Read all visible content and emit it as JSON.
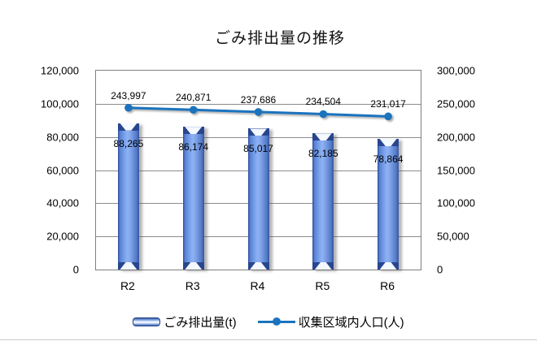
{
  "title": "ごみ排出量の推移",
  "chart_data": {
    "type": "combo-bar-line",
    "title": "ごみ排出量の推移",
    "categories": [
      "R2",
      "R3",
      "R4",
      "R5",
      "R6"
    ],
    "series": [
      {
        "name": "ごみ排出量(t)",
        "type": "bar",
        "axis": "left",
        "values": [
          88265,
          86174,
          85017,
          82185,
          78864
        ],
        "labels": [
          "88,265",
          "86,174",
          "85,017",
          "82,185",
          "78,864"
        ]
      },
      {
        "name": "収集区域内人口(人)",
        "type": "line",
        "axis": "right",
        "values": [
          243997,
          240871,
          237686,
          234504,
          231017
        ],
        "labels": [
          "243,997",
          "240,871",
          "237,686",
          "234,504",
          "231,017"
        ]
      }
    ],
    "left_axis": {
      "min": 0,
      "max": 120000,
      "step": 20000,
      "ticks": [
        "120,000",
        "100,000",
        "80,000",
        "60,000",
        "40,000",
        "20,000",
        "0"
      ]
    },
    "right_axis": {
      "min": 0,
      "max": 300000,
      "step": 50000,
      "ticks": [
        "300,000",
        "250,000",
        "200,000",
        "150,000",
        "100,000",
        "50,000",
        "0"
      ]
    },
    "grid": true,
    "legend_position": "bottom",
    "colors": {
      "bar_body_center": "#8fb3f2",
      "bar_body_edge": "#35539f",
      "bar_cap": "#28468f",
      "line": "#1b73be",
      "gridline": "#8c8c8c",
      "plot_border": "#7f7f7f",
      "text": "#000000"
    }
  }
}
